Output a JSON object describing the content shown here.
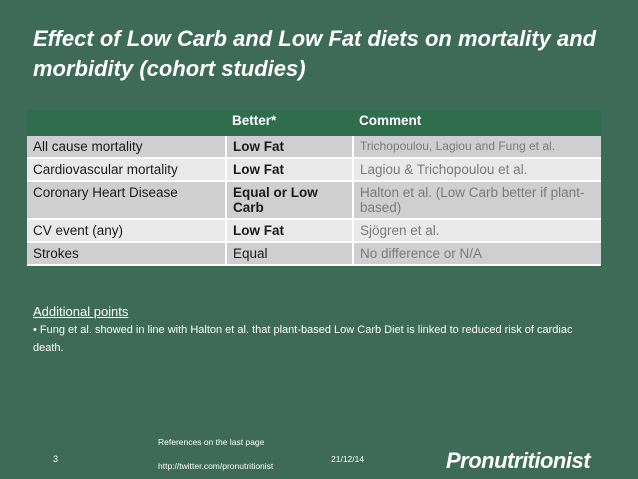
{
  "slide": {
    "title": "Effect of Low Carb and Low Fat diets on mortality and morbidity (cohort studies)"
  },
  "table": {
    "headers": [
      "",
      "Better*",
      "Comment"
    ],
    "rows": [
      {
        "outcome": "All cause mortality",
        "better": "Low Fat",
        "comment": "Trichopoulou, Lagiou and Fung et al."
      },
      {
        "outcome": "Cardiovascular mortality",
        "better": "Low Fat",
        "comment": "Lagiou & Trichopoulou et al."
      },
      {
        "outcome": "Coronary Heart Disease",
        "better": "Equal or Low Carb",
        "comment": "Halton et al. (Low Carb better if plant-based)"
      },
      {
        "outcome": "CV event (any)",
        "better": "Low Fat",
        "comment": "Sjögren et al."
      },
      {
        "outcome": "Strokes",
        "better": "Equal",
        "comment": "No difference or N/A"
      }
    ]
  },
  "notes": {
    "heading": "Additional points ",
    "text": "• Fung et al. showed in line with Halton et al. that plant-based Low Carb Diet is linked to reduced risk of cardiac death."
  },
  "footer": {
    "references": "References on the last page",
    "url": "http://twitter.com/pronutritionist",
    "page_number": "3",
    "date": "21/12/14",
    "logo": "Pronutritionist"
  }
}
